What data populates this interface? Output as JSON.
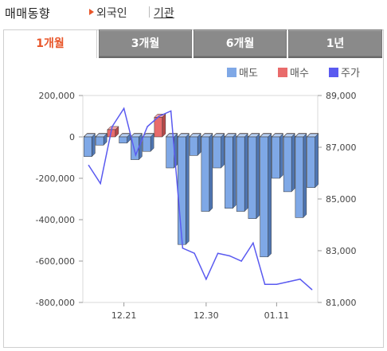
{
  "header": {
    "title": "매매동향",
    "sub_a": "외국인",
    "sub_b": "기관"
  },
  "tabs": [
    {
      "label": "1개월",
      "active": true
    },
    {
      "label": "3개월",
      "active": false
    },
    {
      "label": "6개월",
      "active": false
    },
    {
      "label": "1년",
      "active": false
    }
  ],
  "colors": {
    "sell": "#7fa8e6",
    "buy": "#e96b6b",
    "price": "#5a5af0",
    "accent": "#e8562a"
  },
  "chart_data": {
    "type": "bar",
    "legend": [
      {
        "name": "매도",
        "color": "#7fa8e6"
      },
      {
        "name": "매수",
        "color": "#e96b6b"
      },
      {
        "name": "주가",
        "color": "#5a5af0"
      }
    ],
    "legend_position": "top-right",
    "x_tick_labels": [
      "12.21",
      "12.30",
      "01.11"
    ],
    "x_tick_index": [
      3,
      10,
      16
    ],
    "ylim_left": [
      -800000,
      200000
    ],
    "yticks_left": [
      "200,000",
      "0",
      "-200,000",
      "-400,000",
      "-600,000",
      "-800,000"
    ],
    "ylim_right": [
      81000,
      89000
    ],
    "yticks_right": [
      "89,000",
      "87,000",
      "85,000",
      "83,000",
      "81,000"
    ],
    "grid": false,
    "series": [
      {
        "name": "매도",
        "values": [
          -95000,
          -40000,
          0,
          -30000,
          -110000,
          -70000,
          0,
          -150000,
          -520000,
          -90000,
          -360000,
          -150000,
          -345000,
          -360000,
          -395000,
          -580000,
          -200000,
          -265000,
          -390000,
          -245000
        ]
      },
      {
        "name": "매수",
        "values": [
          0,
          0,
          35000,
          0,
          0,
          0,
          95000,
          0,
          0,
          0,
          0,
          0,
          0,
          0,
          0,
          0,
          0,
          0,
          0,
          0
        ]
      },
      {
        "name": "주가",
        "values": [
          86300,
          85600,
          87800,
          88500,
          86700,
          87800,
          88200,
          88400,
          83100,
          82900,
          81900,
          82900,
          82800,
          82600,
          83300,
          81700,
          81700,
          81800,
          81900,
          81500
        ]
      }
    ]
  }
}
